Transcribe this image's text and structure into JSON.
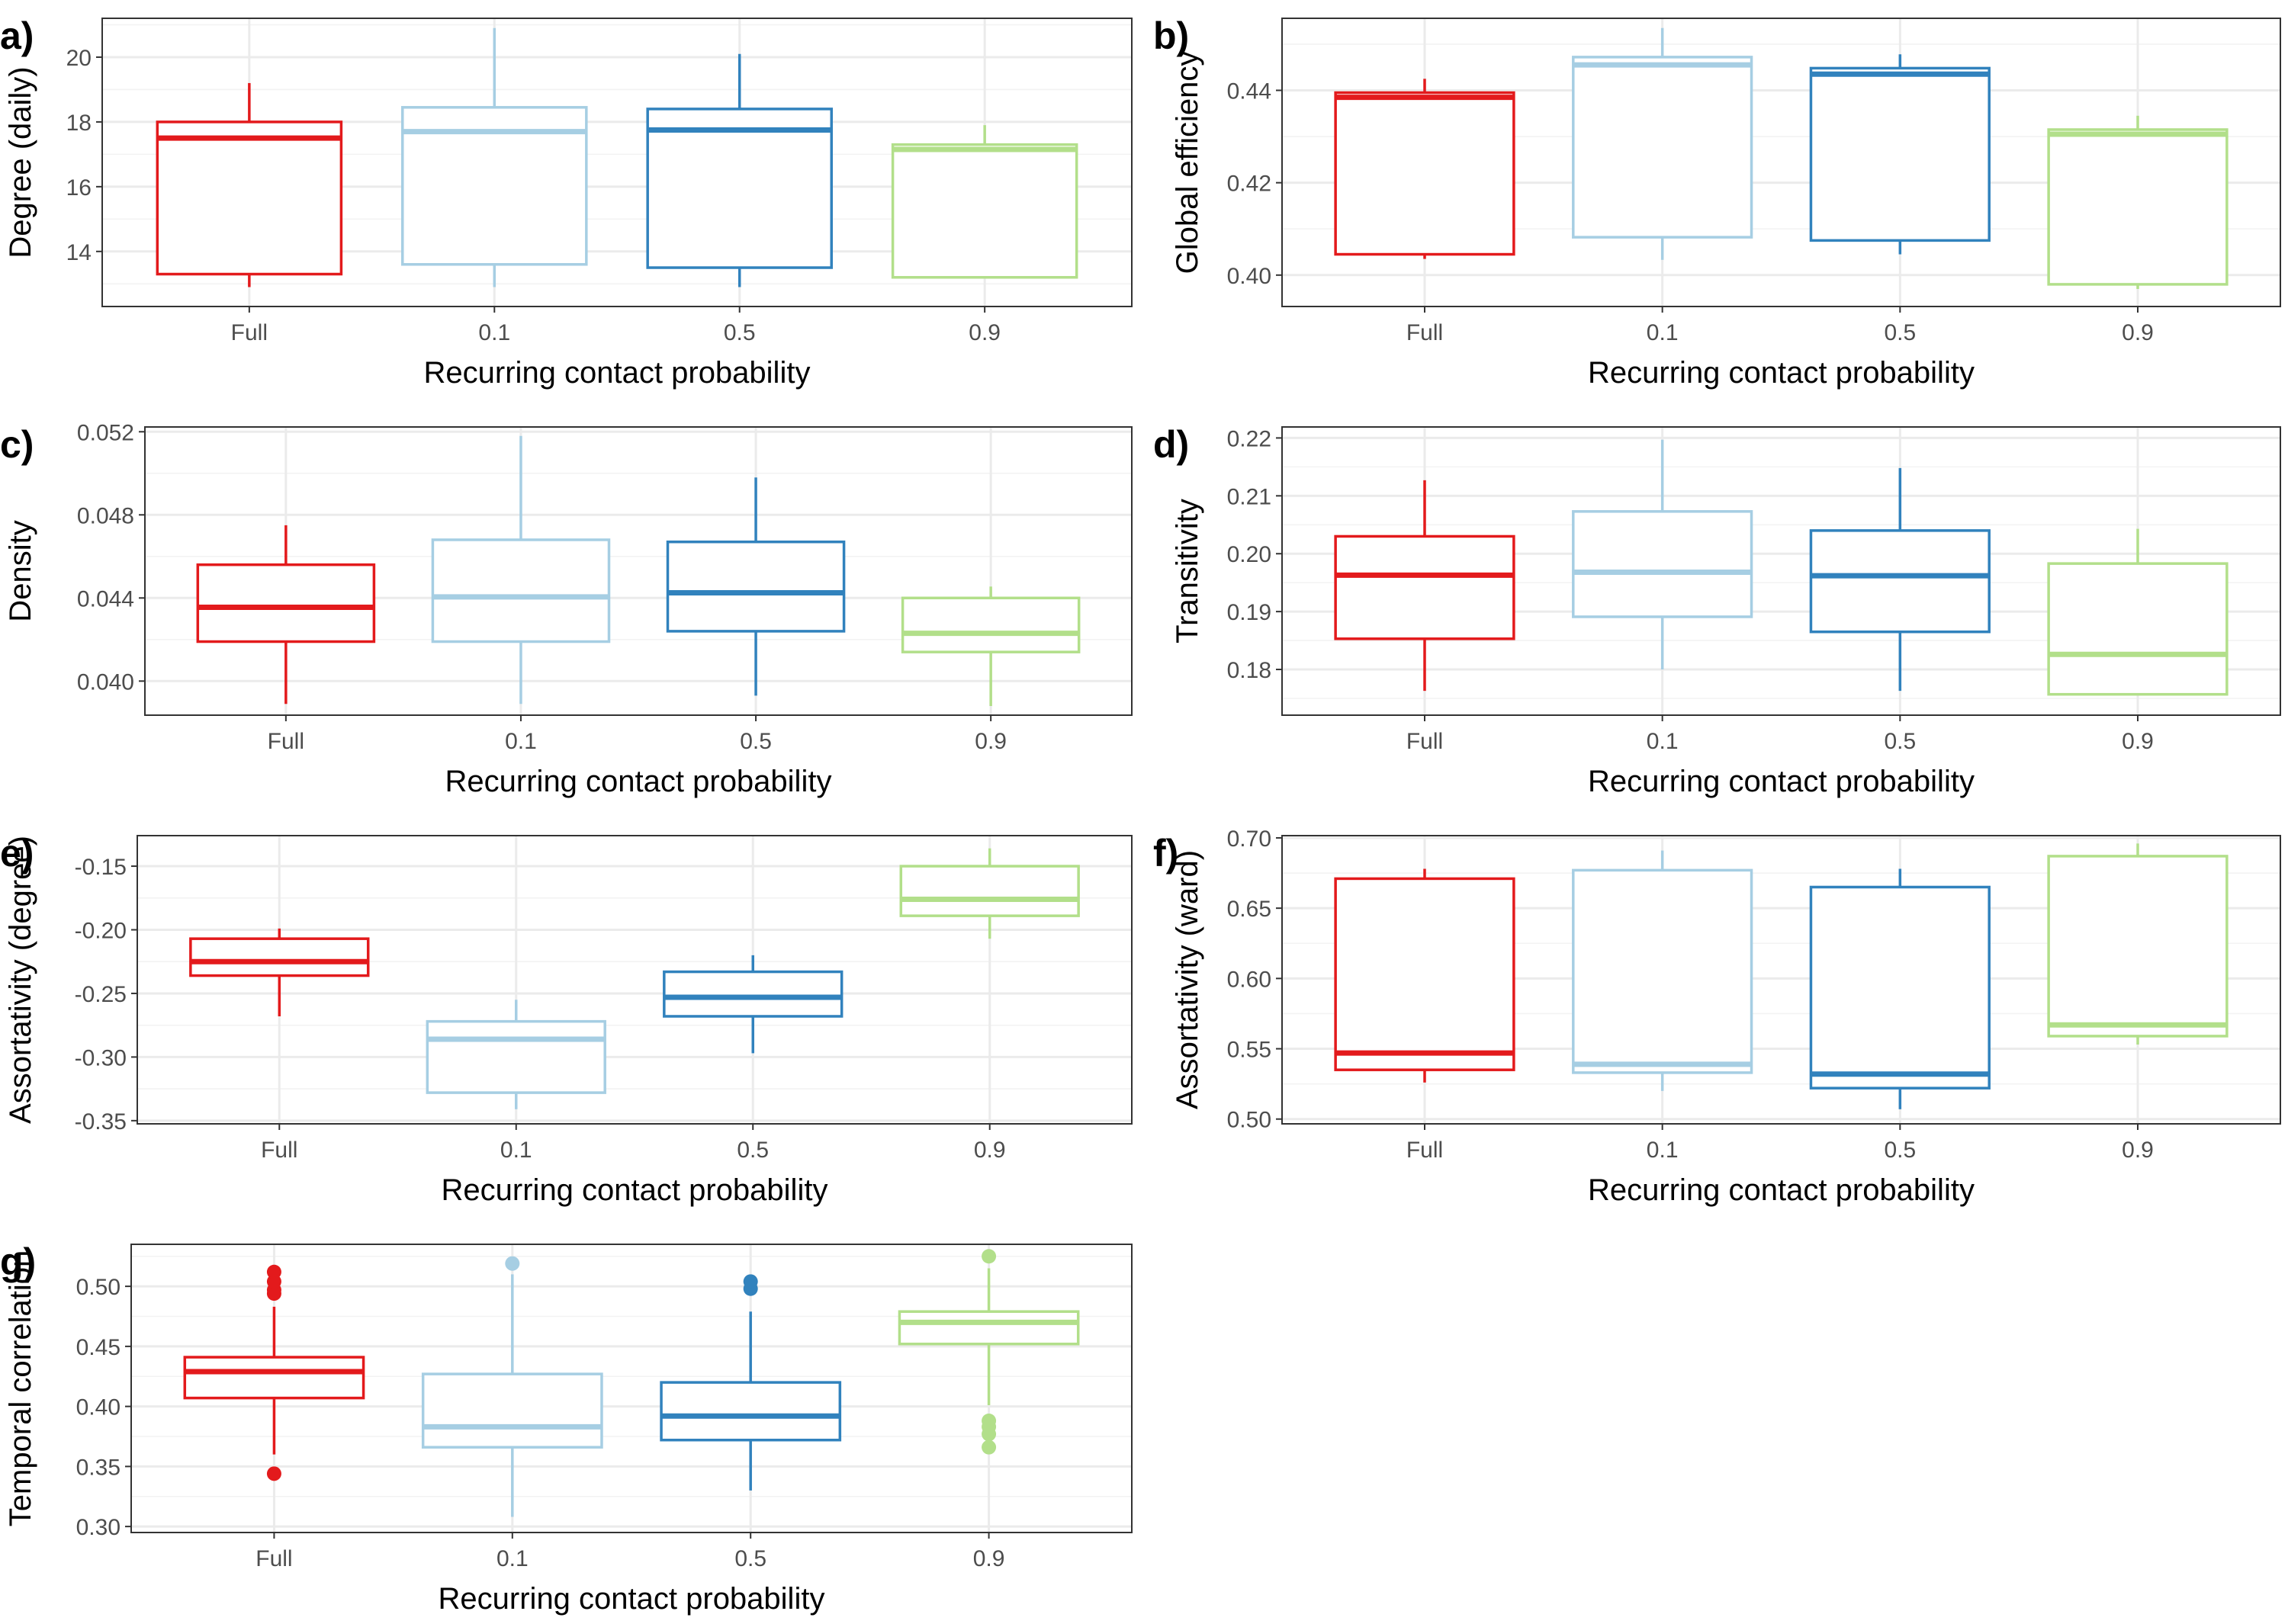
{
  "figure": {
    "xlabel": "Recurring contact probability",
    "categories": [
      "Full",
      "0.1",
      "0.5",
      "0.9"
    ],
    "colors": [
      "#e31a1c",
      "#a6cee3",
      "#3182bd",
      "#b2df8a"
    ]
  },
  "chart_data": [
    {
      "tag": "a)",
      "type": "box",
      "ylabel": "Degree (daily)",
      "ylim": [
        12.3,
        21.2
      ],
      "yticks": [
        14,
        16,
        18,
        20
      ],
      "ytick_labels": [
        "14",
        "16",
        "18",
        "20"
      ],
      "boxes": [
        {
          "category": "Full",
          "whisker_low": 12.9,
          "q1": 13.3,
          "median": 17.5,
          "q3": 18.0,
          "whisker_high": 19.2,
          "outliers": []
        },
        {
          "category": "0.1",
          "whisker_low": 12.9,
          "q1": 13.6,
          "median": 17.7,
          "q3": 18.45,
          "whisker_high": 20.9,
          "outliers": []
        },
        {
          "category": "0.5",
          "whisker_low": 12.9,
          "q1": 13.5,
          "median": 17.75,
          "q3": 18.4,
          "whisker_high": 20.1,
          "outliers": []
        },
        {
          "category": "0.9",
          "whisker_low": 13.2,
          "q1": 13.2,
          "median": 17.15,
          "q3": 17.3,
          "whisker_high": 17.9,
          "outliers": []
        }
      ]
    },
    {
      "tag": "b)",
      "type": "box",
      "ylabel": "Global efficiency",
      "ylim": [
        0.3932,
        0.4556
      ],
      "yticks": [
        0.4,
        0.42,
        0.44
      ],
      "ytick_labels": [
        "0.40",
        "0.42",
        "0.44"
      ],
      "boxes": [
        {
          "category": "Full",
          "whisker_low": 0.4035,
          "q1": 0.4045,
          "median": 0.4385,
          "q3": 0.4395,
          "whisker_high": 0.4425,
          "outliers": []
        },
        {
          "category": "0.1",
          "whisker_low": 0.4033,
          "q1": 0.4082,
          "median": 0.4455,
          "q3": 0.4472,
          "whisker_high": 0.4535,
          "outliers": []
        },
        {
          "category": "0.5",
          "whisker_low": 0.4045,
          "q1": 0.4075,
          "median": 0.4435,
          "q3": 0.4448,
          "whisker_high": 0.4478,
          "outliers": []
        },
        {
          "category": "0.9",
          "whisker_low": 0.397,
          "q1": 0.398,
          "median": 0.4305,
          "q3": 0.4315,
          "whisker_high": 0.4345,
          "outliers": []
        }
      ]
    },
    {
      "tag": "c)",
      "type": "box",
      "ylabel": "Density",
      "ylim": [
        0.03836,
        0.05223
      ],
      "yticks": [
        0.04,
        0.044,
        0.048,
        0.052
      ],
      "ytick_labels": [
        "0.040",
        "0.044",
        "0.048",
        "0.052"
      ],
      "boxes": [
        {
          "category": "Full",
          "whisker_low": 0.0389,
          "q1": 0.0419,
          "median": 0.04355,
          "q3": 0.0456,
          "whisker_high": 0.0475,
          "outliers": []
        },
        {
          "category": "0.1",
          "whisker_low": 0.0389,
          "q1": 0.0419,
          "median": 0.04405,
          "q3": 0.0468,
          "whisker_high": 0.0518,
          "outliers": []
        },
        {
          "category": "0.5",
          "whisker_low": 0.0393,
          "q1": 0.0424,
          "median": 0.04425,
          "q3": 0.0467,
          "whisker_high": 0.0498,
          "outliers": []
        },
        {
          "category": "0.9",
          "whisker_low": 0.0388,
          "q1": 0.0414,
          "median": 0.0423,
          "q3": 0.044,
          "whisker_high": 0.04455,
          "outliers": []
        }
      ]
    },
    {
      "tag": "d)",
      "type": "box",
      "ylabel": "Transitivity",
      "ylim": [
        0.1721,
        0.2219
      ],
      "yticks": [
        0.18,
        0.19,
        0.2,
        0.21,
        0.22
      ],
      "ytick_labels": [
        "0.18",
        "0.19",
        "0.20",
        "0.21",
        "0.22"
      ],
      "boxes": [
        {
          "category": "Full",
          "whisker_low": 0.1763,
          "q1": 0.1853,
          "median": 0.1963,
          "q3": 0.203,
          "whisker_high": 0.2127,
          "outliers": []
        },
        {
          "category": "0.1",
          "whisker_low": 0.18,
          "q1": 0.1891,
          "median": 0.1968,
          "q3": 0.2073,
          "whisker_high": 0.2197,
          "outliers": []
        },
        {
          "category": "0.5",
          "whisker_low": 0.1763,
          "q1": 0.1865,
          "median": 0.1962,
          "q3": 0.204,
          "whisker_high": 0.2148,
          "outliers": []
        },
        {
          "category": "0.9",
          "whisker_low": 0.1757,
          "q1": 0.1757,
          "median": 0.1826,
          "q3": 0.1983,
          "whisker_high": 0.2043,
          "outliers": []
        }
      ]
    },
    {
      "tag": "e)",
      "type": "box",
      "ylabel": "Assortativity (degree)",
      "ylim": [
        -0.3525,
        -0.126
      ],
      "yticks": [
        -0.35,
        -0.3,
        -0.25,
        -0.2,
        -0.15
      ],
      "ytick_labels": [
        "-0.35",
        "-0.30",
        "-0.25",
        "-0.20",
        "-0.15"
      ],
      "boxes": [
        {
          "category": "Full",
          "whisker_low": -0.268,
          "q1": -0.236,
          "median": -0.225,
          "q3": -0.207,
          "whisker_high": -0.199,
          "outliers": []
        },
        {
          "category": "0.1",
          "whisker_low": -0.341,
          "q1": -0.328,
          "median": -0.286,
          "q3": -0.272,
          "whisker_high": -0.255,
          "outliers": []
        },
        {
          "category": "0.5",
          "whisker_low": -0.297,
          "q1": -0.268,
          "median": -0.253,
          "q3": -0.233,
          "whisker_high": -0.22,
          "outliers": []
        },
        {
          "category": "0.9",
          "whisker_low": -0.207,
          "q1": -0.189,
          "median": -0.176,
          "q3": -0.15,
          "whisker_high": -0.136,
          "outliers": []
        }
      ]
    },
    {
      "tag": "f)",
      "type": "box",
      "ylabel": "Assortativity (ward)",
      "ylim": [
        0.4966,
        0.7016
      ],
      "yticks": [
        0.5,
        0.55,
        0.6,
        0.65,
        0.7
      ],
      "ytick_labels": [
        "0.50",
        "0.55",
        "0.60",
        "0.65",
        "0.70"
      ],
      "boxes": [
        {
          "category": "Full",
          "whisker_low": 0.526,
          "q1": 0.535,
          "median": 0.547,
          "q3": 0.671,
          "whisker_high": 0.678,
          "outliers": []
        },
        {
          "category": "0.1",
          "whisker_low": 0.52,
          "q1": 0.533,
          "median": 0.539,
          "q3": 0.677,
          "whisker_high": 0.691,
          "outliers": []
        },
        {
          "category": "0.5",
          "whisker_low": 0.507,
          "q1": 0.522,
          "median": 0.532,
          "q3": 0.665,
          "whisker_high": 0.678,
          "outliers": []
        },
        {
          "category": "0.9",
          "whisker_low": 0.553,
          "q1": 0.559,
          "median": 0.567,
          "q3": 0.687,
          "whisker_high": 0.696,
          "outliers": []
        }
      ]
    },
    {
      "tag": "g)",
      "type": "box",
      "ylabel": "Temporal correlation",
      "ylim": [
        0.295,
        0.535
      ],
      "yticks": [
        0.3,
        0.35,
        0.4,
        0.45,
        0.5
      ],
      "ytick_labels": [
        "0.30",
        "0.35",
        "0.40",
        "0.45",
        "0.50"
      ],
      "boxes": [
        {
          "category": "Full",
          "whisker_low": 0.36,
          "q1": 0.407,
          "median": 0.429,
          "q3": 0.441,
          "whisker_high": 0.483,
          "outliers": [
            0.344,
            0.494,
            0.497,
            0.504,
            0.512
          ]
        },
        {
          "category": "0.1",
          "whisker_low": 0.308,
          "q1": 0.366,
          "median": 0.383,
          "q3": 0.427,
          "whisker_high": 0.51,
          "outliers": [
            0.519
          ]
        },
        {
          "category": "0.5",
          "whisker_low": 0.33,
          "q1": 0.372,
          "median": 0.392,
          "q3": 0.42,
          "whisker_high": 0.479,
          "outliers": [
            0.498,
            0.504
          ]
        },
        {
          "category": "0.9",
          "whisker_low": 0.401,
          "q1": 0.452,
          "median": 0.47,
          "q3": 0.479,
          "whisker_high": 0.515,
          "outliers": [
            0.366,
            0.377,
            0.383,
            0.388,
            0.525
          ]
        }
      ]
    }
  ]
}
